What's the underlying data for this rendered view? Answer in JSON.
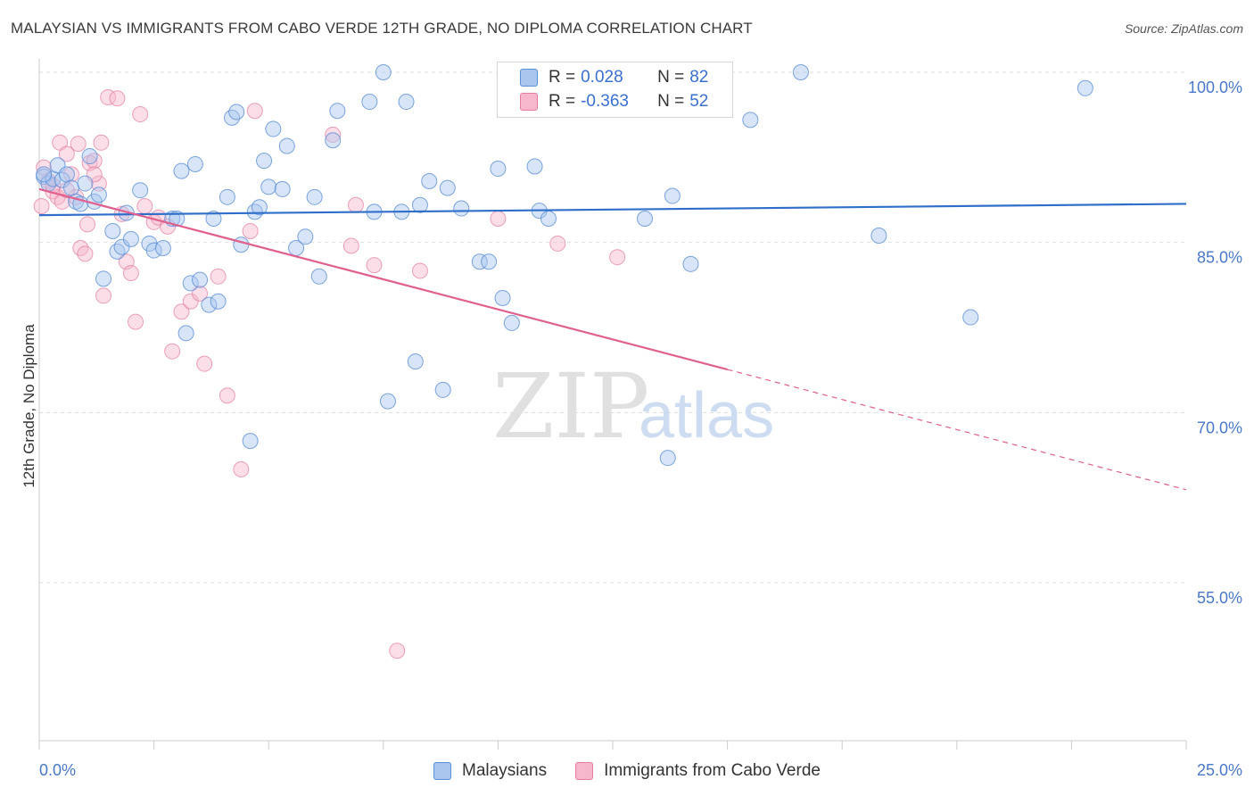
{
  "title": "MALAYSIAN VS IMMIGRANTS FROM CABO VERDE 12TH GRADE, NO DIPLOMA CORRELATION CHART",
  "source": "Source: ZipAtlas.com",
  "watermark": {
    "zip": "ZIP",
    "atlas": "atlas"
  },
  "legend": {
    "rows": [
      {
        "r_label": "R =",
        "r_value": "0.028",
        "n_label": "N =",
        "n_value": "82"
      },
      {
        "r_label": "R =",
        "r_value": "-0.363",
        "n_label": "N =",
        "n_value": "52"
      }
    ]
  },
  "bottom_legend": [
    "Malaysians",
    "Immigrants from Cabo Verde"
  ],
  "colors": {
    "blue_fill": "#a9c6ef",
    "blue_stroke": "#5b8fd6",
    "blue_line": "#2f6fc9",
    "pink_fill": "#f6b6cb",
    "pink_stroke": "#e47ba0",
    "pink_line": "#e0608e",
    "tick": "#4a78c8",
    "grid": "#dddddd"
  },
  "chart_data": {
    "type": "scatter",
    "xlabel": "",
    "ylabel": "12th Grade, No Diploma",
    "xlim": [
      0,
      25
    ],
    "ylim": [
      40,
      102
    ],
    "x_tick_labels": [
      {
        "value": 0,
        "label": "0.0%"
      },
      {
        "value": 25,
        "label": "25.0%"
      }
    ],
    "y_tick_labels": [
      {
        "value": 100,
        "label": "100.0%"
      },
      {
        "value": 85,
        "label": "85.0%"
      },
      {
        "value": 70,
        "label": "70.0%"
      },
      {
        "value": 55,
        "label": "55.0%"
      }
    ],
    "grid": true,
    "legend_position": "top-center",
    "series": [
      {
        "name": "Malaysians",
        "color": "#a9c6ef",
        "trend": {
          "x": [
            0,
            25
          ],
          "y": [
            87.4,
            88.4
          ],
          "dashed_after": null
        },
        "points": [
          [
            0.1,
            90.8
          ],
          [
            0.2,
            90.2
          ],
          [
            0.3,
            90.6
          ],
          [
            0.4,
            91.8
          ],
          [
            0.5,
            90.5
          ],
          [
            0.6,
            91.0
          ],
          [
            0.7,
            89.8
          ],
          [
            0.8,
            88.6
          ],
          [
            0.9,
            88.4
          ],
          [
            1.0,
            90.2
          ],
          [
            1.1,
            92.6
          ],
          [
            1.2,
            88.6
          ],
          [
            1.3,
            89.2
          ],
          [
            1.4,
            81.8
          ],
          [
            1.6,
            86.0
          ],
          [
            1.7,
            84.2
          ],
          [
            1.8,
            84.6
          ],
          [
            2.2,
            89.6
          ],
          [
            2.4,
            84.9
          ],
          [
            2.5,
            84.3
          ],
          [
            2.0,
            85.3
          ],
          [
            2.7,
            84.5
          ],
          [
            2.9,
            87.1
          ],
          [
            3.0,
            87.1
          ],
          [
            3.1,
            91.3
          ],
          [
            3.2,
            77.0
          ],
          [
            3.3,
            81.4
          ],
          [
            3.4,
            91.9
          ],
          [
            3.5,
            81.7
          ],
          [
            3.7,
            79.5
          ],
          [
            3.8,
            87.1
          ],
          [
            3.9,
            79.8
          ],
          [
            4.1,
            89.0
          ],
          [
            4.2,
            96.0
          ],
          [
            4.3,
            96.5
          ],
          [
            4.4,
            84.8
          ],
          [
            4.6,
            67.5
          ],
          [
            4.7,
            87.7
          ],
          [
            4.8,
            88.1
          ],
          [
            4.9,
            92.2
          ],
          [
            5.0,
            89.9
          ],
          [
            5.1,
            95.0
          ],
          [
            5.3,
            89.7
          ],
          [
            5.4,
            93.5
          ],
          [
            5.6,
            84.5
          ],
          [
            5.8,
            85.5
          ],
          [
            6.0,
            89.0
          ],
          [
            6.1,
            82.0
          ],
          [
            6.4,
            94.0
          ],
          [
            6.5,
            96.6
          ],
          [
            7.2,
            97.4
          ],
          [
            7.3,
            87.7
          ],
          [
            7.5,
            100.0
          ],
          [
            7.6,
            71.0
          ],
          [
            7.9,
            87.7
          ],
          [
            8.0,
            97.4
          ],
          [
            8.2,
            74.5
          ],
          [
            8.3,
            88.3
          ],
          [
            8.5,
            90.4
          ],
          [
            8.8,
            72.0
          ],
          [
            8.9,
            89.8
          ],
          [
            9.2,
            88.0
          ],
          [
            9.6,
            83.3
          ],
          [
            9.8,
            83.3
          ],
          [
            10.0,
            91.5
          ],
          [
            10.1,
            80.1
          ],
          [
            10.3,
            77.9
          ],
          [
            10.8,
            91.7
          ],
          [
            10.9,
            87.8
          ],
          [
            11.1,
            87.1
          ],
          [
            11.5,
            100.0
          ],
          [
            13.2,
            87.1
          ],
          [
            13.7,
            66.0
          ],
          [
            13.8,
            89.1
          ],
          [
            14.2,
            83.1
          ],
          [
            15.5,
            95.8
          ],
          [
            16.6,
            100.0
          ],
          [
            18.3,
            85.6
          ],
          [
            20.3,
            78.4
          ],
          [
            22.8,
            98.6
          ],
          [
            0.1,
            91.0
          ],
          [
            1.9,
            87.6
          ]
        ]
      },
      {
        "name": "Immigrants from Cabo Verde",
        "color": "#f6b6cb",
        "trend": {
          "x": [
            0,
            25
          ],
          "y": [
            89.7,
            63.2
          ],
          "dashed_after": 15
        },
        "points": [
          [
            0.05,
            88.2
          ],
          [
            0.1,
            91.6
          ],
          [
            0.2,
            90.4
          ],
          [
            0.3,
            89.5
          ],
          [
            0.4,
            89.0
          ],
          [
            0.45,
            93.8
          ],
          [
            0.5,
            88.6
          ],
          [
            0.6,
            92.8
          ],
          [
            0.7,
            91.0
          ],
          [
            0.8,
            89.0
          ],
          [
            0.85,
            93.7
          ],
          [
            0.9,
            84.5
          ],
          [
            1.0,
            84.0
          ],
          [
            1.05,
            86.6
          ],
          [
            1.1,
            92.0
          ],
          [
            1.2,
            92.2
          ],
          [
            1.3,
            90.2
          ],
          [
            1.35,
            93.8
          ],
          [
            1.4,
            80.3
          ],
          [
            1.5,
            97.8
          ],
          [
            1.7,
            97.7
          ],
          [
            1.8,
            87.5
          ],
          [
            1.9,
            83.3
          ],
          [
            2.0,
            82.3
          ],
          [
            2.1,
            78.0
          ],
          [
            2.2,
            96.3
          ],
          [
            2.3,
            88.2
          ],
          [
            2.5,
            86.8
          ],
          [
            2.6,
            87.2
          ],
          [
            2.8,
            86.4
          ],
          [
            2.9,
            75.4
          ],
          [
            3.1,
            78.9
          ],
          [
            3.3,
            79.8
          ],
          [
            3.5,
            80.5
          ],
          [
            3.6,
            74.3
          ],
          [
            3.9,
            82.0
          ],
          [
            4.1,
            71.5
          ],
          [
            4.4,
            65.0
          ],
          [
            4.6,
            86.0
          ],
          [
            4.7,
            96.6
          ],
          [
            6.4,
            94.5
          ],
          [
            6.8,
            84.7
          ],
          [
            6.9,
            88.3
          ],
          [
            7.3,
            83.0
          ],
          [
            7.8,
            49.0
          ],
          [
            8.3,
            82.5
          ],
          [
            10.0,
            87.1
          ],
          [
            11.3,
            84.9
          ],
          [
            12.6,
            83.7
          ],
          [
            0.3,
            90.0
          ],
          [
            0.6,
            89.6
          ],
          [
            1.2,
            91.0
          ]
        ]
      }
    ]
  }
}
